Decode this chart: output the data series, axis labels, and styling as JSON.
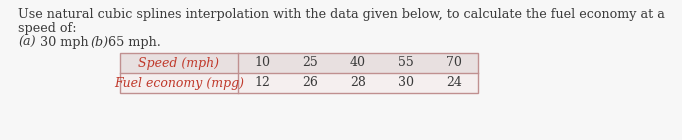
{
  "main_text_line1": "Use natural cubic splines interpolation with the data given below, to calculate the fuel economy at a",
  "main_text_line2": "speed of:",
  "italic_color": "#c0392b",
  "text_color": "#3a3a3a",
  "table_border_color": "#c09090",
  "table_header_bg": "#e8e0e0",
  "table_row2_bg": "#f5efef",
  "background_color": "#f7f7f7",
  "font_size_main": 9.2,
  "font_size_table": 9.0,
  "table_header": [
    "Speed (mph)",
    "10",
    "25",
    "40",
    "55",
    "70"
  ],
  "table_row2": [
    "Fuel economy (mpg)",
    "12",
    "26",
    "28",
    "30",
    "24"
  ],
  "fig_width": 6.82,
  "fig_height": 1.4,
  "dpi": 100
}
